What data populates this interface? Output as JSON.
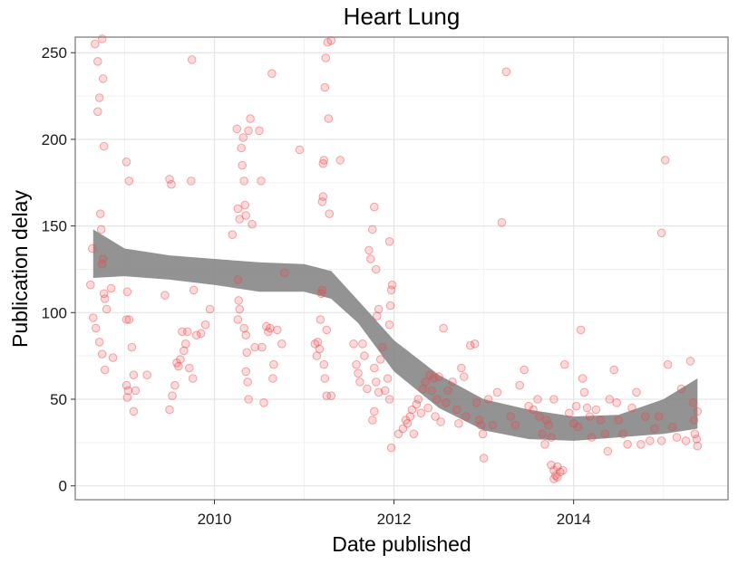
{
  "chart_data": {
    "type": "scatter",
    "title": "Heart Lung",
    "xlabel": "Date published",
    "ylabel": "Publication delay",
    "xlim": [
      2008.45,
      2015.72
    ],
    "ylim": [
      -8,
      259
    ],
    "x_ticks": [
      2010,
      2012,
      2014
    ],
    "x_tick_labels": [
      "2010",
      "2012",
      "2014"
    ],
    "y_ticks": [
      0,
      50,
      100,
      150,
      200,
      250
    ],
    "y_tick_labels": [
      "0",
      "50",
      "100",
      "150",
      "200",
      "250"
    ],
    "grid": true,
    "legend": "none",
    "point_color": "#e8474a",
    "band_color": "#808080",
    "smooth_band": {
      "x": [
        2008.65,
        2009.0,
        2009.5,
        2010.0,
        2010.5,
        2011.0,
        2011.3,
        2011.6,
        2012.0,
        2012.5,
        2013.0,
        2013.5,
        2014.0,
        2014.5,
        2015.0,
        2015.38
      ],
      "upper": [
        148,
        137,
        133,
        131,
        129,
        128,
        124,
        107,
        84,
        64,
        50,
        44,
        40,
        41,
        50,
        62
      ],
      "lower": [
        120,
        121,
        119,
        116,
        112,
        112,
        108,
        94,
        66,
        45,
        32,
        27,
        26,
        28,
        30,
        33
      ]
    },
    "points": [
      [
        2008.62,
        116
      ],
      [
        2008.64,
        137
      ],
      [
        2008.65,
        97
      ],
      [
        2008.67,
        255
      ],
      [
        2008.68,
        91
      ],
      [
        2008.7,
        245
      ],
      [
        2008.72,
        224
      ],
      [
        2008.7,
        216
      ],
      [
        2008.73,
        157
      ],
      [
        2008.74,
        148
      ],
      [
        2008.75,
        258
      ],
      [
        2008.76,
        235
      ],
      [
        2008.77,
        196
      ],
      [
        2008.75,
        128
      ],
      [
        2008.76,
        131
      ],
      [
        2008.77,
        111
      ],
      [
        2008.78,
        108
      ],
      [
        2008.8,
        102
      ],
      [
        2008.72,
        83
      ],
      [
        2008.75,
        76
      ],
      [
        2008.78,
        67
      ],
      [
        2008.85,
        114
      ],
      [
        2008.87,
        74
      ],
      [
        2009.02,
        187
      ],
      [
        2009.05,
        176
      ],
      [
        2009.03,
        112
      ],
      [
        2009.02,
        96
      ],
      [
        2009.05,
        96
      ],
      [
        2009.02,
        58
      ],
      [
        2009.04,
        55
      ],
      [
        2009.03,
        51
      ],
      [
        2009.08,
        80
      ],
      [
        2009.1,
        64
      ],
      [
        2009.12,
        55
      ],
      [
        2009.1,
        43
      ],
      [
        2009.25,
        64
      ],
      [
        2009.45,
        110
      ],
      [
        2009.5,
        177
      ],
      [
        2009.52,
        174
      ],
      [
        2009.5,
        44
      ],
      [
        2009.53,
        52
      ],
      [
        2009.56,
        58
      ],
      [
        2009.58,
        71
      ],
      [
        2009.6,
        69
      ],
      [
        2009.62,
        73
      ],
      [
        2009.64,
        89
      ],
      [
        2009.66,
        78
      ],
      [
        2009.68,
        82
      ],
      [
        2009.7,
        89
      ],
      [
        2009.72,
        68
      ],
      [
        2009.74,
        176
      ],
      [
        2009.75,
        246
      ],
      [
        2009.77,
        113
      ],
      [
        2009.76,
        62
      ],
      [
        2009.8,
        87
      ],
      [
        2009.85,
        88
      ],
      [
        2009.9,
        93
      ],
      [
        2009.95,
        102
      ],
      [
        2010.2,
        145
      ],
      [
        2010.25,
        206
      ],
      [
        2010.26,
        160
      ],
      [
        2010.28,
        154
      ],
      [
        2010.26,
        119
      ],
      [
        2010.27,
        107
      ],
      [
        2010.26,
        96
      ],
      [
        2010.28,
        102
      ],
      [
        2010.3,
        195
      ],
      [
        2010.32,
        201
      ],
      [
        2010.31,
        185
      ],
      [
        2010.33,
        176
      ],
      [
        2010.34,
        162
      ],
      [
        2010.35,
        156
      ],
      [
        2010.33,
        91
      ],
      [
        2010.35,
        87
      ],
      [
        2010.36,
        77
      ],
      [
        2010.35,
        66
      ],
      [
        2010.37,
        60
      ],
      [
        2010.38,
        50
      ],
      [
        2010.4,
        212
      ],
      [
        2010.38,
        205
      ],
      [
        2010.42,
        151
      ],
      [
        2010.45,
        80
      ],
      [
        2010.5,
        205
      ],
      [
        2010.52,
        176
      ],
      [
        2010.53,
        80
      ],
      [
        2010.55,
        48
      ],
      [
        2010.58,
        92
      ],
      [
        2010.6,
        89
      ],
      [
        2010.62,
        91
      ],
      [
        2010.64,
        238
      ],
      [
        2010.66,
        70
      ],
      [
        2010.65,
        62
      ],
      [
        2010.7,
        90
      ],
      [
        2010.75,
        82
      ],
      [
        2010.78,
        123
      ],
      [
        2010.95,
        194
      ],
      [
        2011.12,
        82
      ],
      [
        2011.14,
        75
      ],
      [
        2011.15,
        83
      ],
      [
        2011.17,
        79
      ],
      [
        2011.18,
        96
      ],
      [
        2011.19,
        111
      ],
      [
        2011.2,
        113
      ],
      [
        2011.21,
        167
      ],
      [
        2011.2,
        164
      ],
      [
        2011.22,
        188
      ],
      [
        2011.21,
        186
      ],
      [
        2011.23,
        230
      ],
      [
        2011.24,
        247
      ],
      [
        2011.26,
        256
      ],
      [
        2011.27,
        212
      ],
      [
        2011.28,
        157
      ],
      [
        2011.25,
        90
      ],
      [
        2011.22,
        70
      ],
      [
        2011.23,
        62
      ],
      [
        2011.25,
        52
      ],
      [
        2011.3,
        257
      ],
      [
        2011.3,
        52
      ],
      [
        2011.4,
        188
      ],
      [
        2011.55,
        82
      ],
      [
        2011.58,
        70
      ],
      [
        2011.6,
        65
      ],
      [
        2011.62,
        60
      ],
      [
        2011.65,
        82
      ],
      [
        2011.67,
        75
      ],
      [
        2011.7,
        56
      ],
      [
        2011.72,
        136
      ],
      [
        2011.74,
        131
      ],
      [
        2011.76,
        148
      ],
      [
        2011.78,
        161
      ],
      [
        2011.8,
        125
      ],
      [
        2011.81,
        98
      ],
      [
        2011.83,
        102
      ],
      [
        2011.78,
        68
      ],
      [
        2011.8,
        60
      ],
      [
        2011.83,
        54
      ],
      [
        2011.85,
        73
      ],
      [
        2011.87,
        80
      ],
      [
        2011.9,
        55
      ],
      [
        2011.93,
        62
      ],
      [
        2011.95,
        50
      ],
      [
        2011.76,
        38
      ],
      [
        2011.78,
        43
      ],
      [
        2011.95,
        141
      ],
      [
        2011.97,
        113
      ],
      [
        2011.98,
        116
      ],
      [
        2011.96,
        104
      ],
      [
        2011.95,
        93
      ],
      [
        2011.97,
        22
      ],
      [
        2012.05,
        30
      ],
      [
        2012.1,
        33
      ],
      [
        2012.13,
        38
      ],
      [
        2012.15,
        36
      ],
      [
        2012.18,
        40
      ],
      [
        2012.2,
        44
      ],
      [
        2012.22,
        30
      ],
      [
        2012.25,
        47
      ],
      [
        2012.27,
        50
      ],
      [
        2012.3,
        42
      ],
      [
        2012.32,
        56
      ],
      [
        2012.35,
        60
      ],
      [
        2012.38,
        45
      ],
      [
        2012.4,
        64
      ],
      [
        2012.42,
        55
      ],
      [
        2012.44,
        62
      ],
      [
        2012.46,
        40
      ],
      [
        2012.48,
        50
      ],
      [
        2012.5,
        63
      ],
      [
        2012.52,
        37
      ],
      [
        2012.55,
        91
      ],
      [
        2012.58,
        48
      ],
      [
        2012.6,
        55
      ],
      [
        2012.65,
        60
      ],
      [
        2012.7,
        44
      ],
      [
        2012.72,
        36
      ],
      [
        2012.75,
        68
      ],
      [
        2012.78,
        63
      ],
      [
        2012.8,
        40
      ],
      [
        2012.85,
        81
      ],
      [
        2012.9,
        82
      ],
      [
        2012.92,
        48
      ],
      [
        2012.95,
        38
      ],
      [
        2012.97,
        35
      ],
      [
        2012.99,
        30
      ],
      [
        2013.0,
        16
      ],
      [
        2013.05,
        50
      ],
      [
        2013.1,
        35
      ],
      [
        2013.15,
        54
      ],
      [
        2013.2,
        152
      ],
      [
        2013.25,
        239
      ],
      [
        2013.3,
        40
      ],
      [
        2013.35,
        35
      ],
      [
        2013.4,
        58
      ],
      [
        2013.45,
        67
      ],
      [
        2013.5,
        46
      ],
      [
        2013.55,
        44
      ],
      [
        2013.6,
        50
      ],
      [
        2013.62,
        40
      ],
      [
        2013.65,
        30
      ],
      [
        2013.68,
        24
      ],
      [
        2013.7,
        38
      ],
      [
        2013.72,
        35
      ],
      [
        2013.75,
        28
      ],
      [
        2013.78,
        50
      ],
      [
        2013.75,
        12
      ],
      [
        2013.78,
        9
      ],
      [
        2013.8,
        6
      ],
      [
        2013.82,
        5
      ],
      [
        2013.78,
        4
      ],
      [
        2013.85,
        8
      ],
      [
        2013.88,
        9
      ],
      [
        2013.82,
        11
      ],
      [
        2013.9,
        70
      ],
      [
        2013.95,
        42
      ],
      [
        2014.0,
        36
      ],
      [
        2014.03,
        46
      ],
      [
        2014.05,
        34
      ],
      [
        2014.08,
        90
      ],
      [
        2014.1,
        62
      ],
      [
        2014.12,
        54
      ],
      [
        2014.15,
        45
      ],
      [
        2014.18,
        40
      ],
      [
        2014.2,
        28
      ],
      [
        2014.25,
        44
      ],
      [
        2014.3,
        38
      ],
      [
        2014.35,
        30
      ],
      [
        2014.38,
        20
      ],
      [
        2014.4,
        50
      ],
      [
        2014.45,
        67
      ],
      [
        2014.48,
        48
      ],
      [
        2014.5,
        38
      ],
      [
        2014.55,
        30
      ],
      [
        2014.6,
        24
      ],
      [
        2014.65,
        45
      ],
      [
        2014.7,
        54
      ],
      [
        2014.75,
        24
      ],
      [
        2014.8,
        40
      ],
      [
        2014.85,
        26
      ],
      [
        2014.9,
        33
      ],
      [
        2014.95,
        40
      ],
      [
        2014.98,
        26
      ],
      [
        2015.02,
        188
      ],
      [
        2015.05,
        70
      ],
      [
        2015.1,
        34
      ],
      [
        2015.15,
        28
      ],
      [
        2015.2,
        56
      ],
      [
        2015.25,
        26
      ],
      [
        2015.3,
        72
      ],
      [
        2015.33,
        48
      ],
      [
        2015.35,
        30
      ],
      [
        2015.37,
        27
      ],
      [
        2015.38,
        23
      ],
      [
        2015.38,
        43
      ],
      [
        2015.34,
        38
      ],
      [
        2014.98,
        146
      ]
    ]
  }
}
